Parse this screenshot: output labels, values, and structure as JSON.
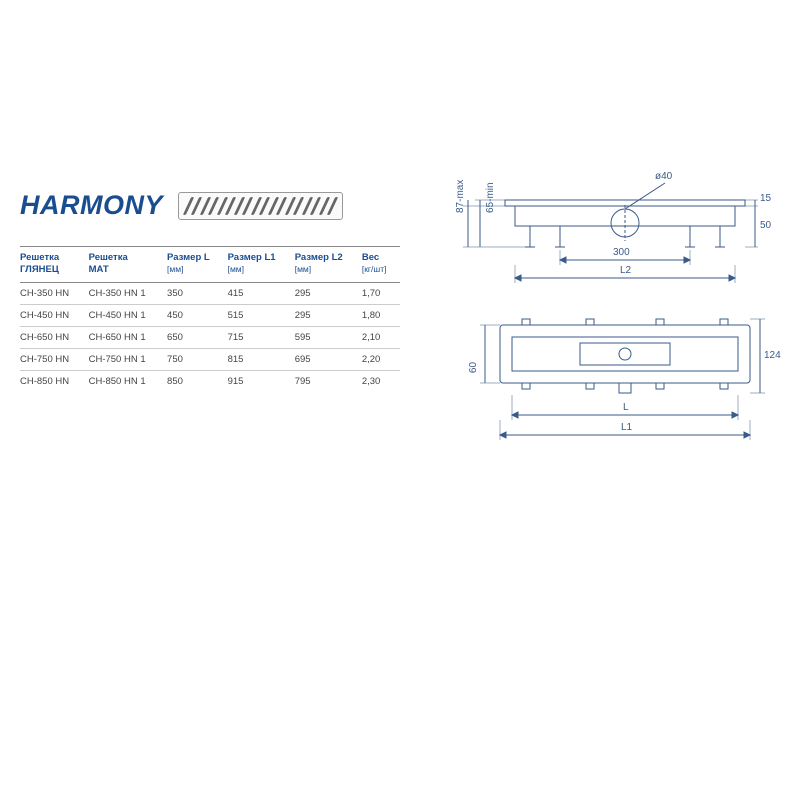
{
  "title": "HARMONY",
  "table": {
    "columns": [
      {
        "header": "Решетка\nГЛЯНЕЦ",
        "unit": ""
      },
      {
        "header": "Решетка\nМАТ",
        "unit": ""
      },
      {
        "header": "Размер L",
        "unit": "[мм]"
      },
      {
        "header": "Размер L1",
        "unit": "[мм]"
      },
      {
        "header": "Размер L2",
        "unit": "[мм]"
      },
      {
        "header": "Вес",
        "unit": "[кг/шт]"
      }
    ],
    "rows": [
      [
        "CH-350 HN",
        "CH-350 HN 1",
        "350",
        "415",
        "295",
        "1,70"
      ],
      [
        "CH-450 HN",
        "CH-450 HN 1",
        "450",
        "515",
        "295",
        "1,80"
      ],
      [
        "CH-650 HN",
        "CH-650 HN 1",
        "650",
        "715",
        "595",
        "2,10"
      ],
      [
        "CH-750 HN",
        "CH-750 HN 1",
        "750",
        "815",
        "695",
        "2,20"
      ],
      [
        "CH-850 HN",
        "CH-850 HN 1",
        "850",
        "915",
        "795",
        "2,30"
      ]
    ]
  },
  "diagram": {
    "stroke_color": "#3a5a8a",
    "dim_color": "#3a5a8a",
    "labels": {
      "max": "87-max",
      "min": "65-min",
      "d40": "ø40",
      "r15": "15",
      "r50": "50",
      "d300": "300",
      "L2": "L2",
      "h60": "60",
      "h124": "124",
      "L": "L",
      "L1": "L1"
    }
  }
}
